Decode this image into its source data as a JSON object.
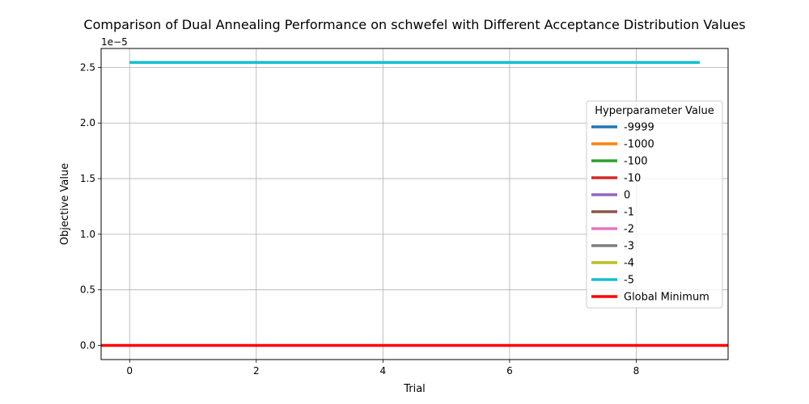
{
  "chart_data": {
    "type": "line",
    "title": "Comparison of Dual Annealing Performance on schwefel with Different Acceptance Distribution Values",
    "xlabel": "Trial",
    "ylabel": "Objective Value",
    "y_offset_text": "1e−5",
    "y_scale_factor": 1e-05,
    "xlim": [
      -0.45,
      9.45
    ],
    "ylim": [
      -1.27e-06,
      2.67e-05
    ],
    "xticks": [
      0,
      2,
      4,
      6,
      8
    ],
    "xtick_labels": [
      "0",
      "2",
      "4",
      "6",
      "8"
    ],
    "yticks": [
      0,
      5e-06,
      1e-05,
      1.5e-05,
      2e-05,
      2.5e-05
    ],
    "ytick_labels": [
      "0.0",
      "0.5",
      "1.0",
      "1.5",
      "2.0",
      "2.5"
    ],
    "grid": true,
    "legend": {
      "title": "Hyperparameter Value",
      "position": "right"
    },
    "x": [
      0,
      1,
      2,
      3,
      4,
      5,
      6,
      7,
      8,
      9
    ],
    "series": [
      {
        "name": "-9999",
        "color": "#1f77b4",
        "values": [
          2.545e-05,
          2.545e-05,
          2.545e-05,
          2.545e-05,
          2.545e-05,
          2.545e-05,
          2.545e-05,
          2.545e-05,
          2.545e-05,
          2.545e-05
        ]
      },
      {
        "name": "-1000",
        "color": "#ff7f0e",
        "values": [
          2.545e-05,
          2.545e-05,
          2.545e-05,
          2.545e-05,
          2.545e-05,
          2.545e-05,
          2.545e-05,
          2.545e-05,
          2.545e-05,
          2.545e-05
        ]
      },
      {
        "name": "-100",
        "color": "#2ca02c",
        "values": [
          2.545e-05,
          2.545e-05,
          2.545e-05,
          2.545e-05,
          2.545e-05,
          2.545e-05,
          2.545e-05,
          2.545e-05,
          2.545e-05,
          2.545e-05
        ]
      },
      {
        "name": "-10",
        "color": "#d62728",
        "values": [
          2.545e-05,
          2.545e-05,
          2.545e-05,
          2.545e-05,
          2.545e-05,
          2.545e-05,
          2.545e-05,
          2.545e-05,
          2.545e-05,
          2.545e-05
        ]
      },
      {
        "name": "0",
        "color": "#9467bd",
        "values": [
          2.545e-05,
          2.545e-05,
          2.545e-05,
          2.545e-05,
          2.545e-05,
          2.545e-05,
          2.545e-05,
          2.545e-05,
          2.545e-05,
          2.545e-05
        ]
      },
      {
        "name": "-1",
        "color": "#8c564b",
        "values": [
          2.545e-05,
          2.545e-05,
          2.545e-05,
          2.545e-05,
          2.545e-05,
          2.545e-05,
          2.545e-05,
          2.545e-05,
          2.545e-05,
          2.545e-05
        ]
      },
      {
        "name": "-2",
        "color": "#e377c2",
        "values": [
          2.545e-05,
          2.545e-05,
          2.545e-05,
          2.545e-05,
          2.545e-05,
          2.545e-05,
          2.545e-05,
          2.545e-05,
          2.545e-05,
          2.545e-05
        ]
      },
      {
        "name": "-3",
        "color": "#7f7f7f",
        "values": [
          2.545e-05,
          2.545e-05,
          2.545e-05,
          2.545e-05,
          2.545e-05,
          2.545e-05,
          2.545e-05,
          2.545e-05,
          2.545e-05,
          2.545e-05
        ]
      },
      {
        "name": "-4",
        "color": "#bcbd22",
        "values": [
          2.545e-05,
          2.545e-05,
          2.545e-05,
          2.545e-05,
          2.545e-05,
          2.545e-05,
          2.545e-05,
          2.545e-05,
          2.545e-05,
          2.545e-05
        ]
      },
      {
        "name": "-5",
        "color": "#17becf",
        "values": [
          2.545e-05,
          2.545e-05,
          2.545e-05,
          2.545e-05,
          2.545e-05,
          2.545e-05,
          2.545e-05,
          2.545e-05,
          2.545e-05,
          2.545e-05
        ]
      }
    ],
    "hlines": [
      {
        "name": "Global Minimum",
        "color": "#ff0000",
        "y": 0
      }
    ]
  }
}
